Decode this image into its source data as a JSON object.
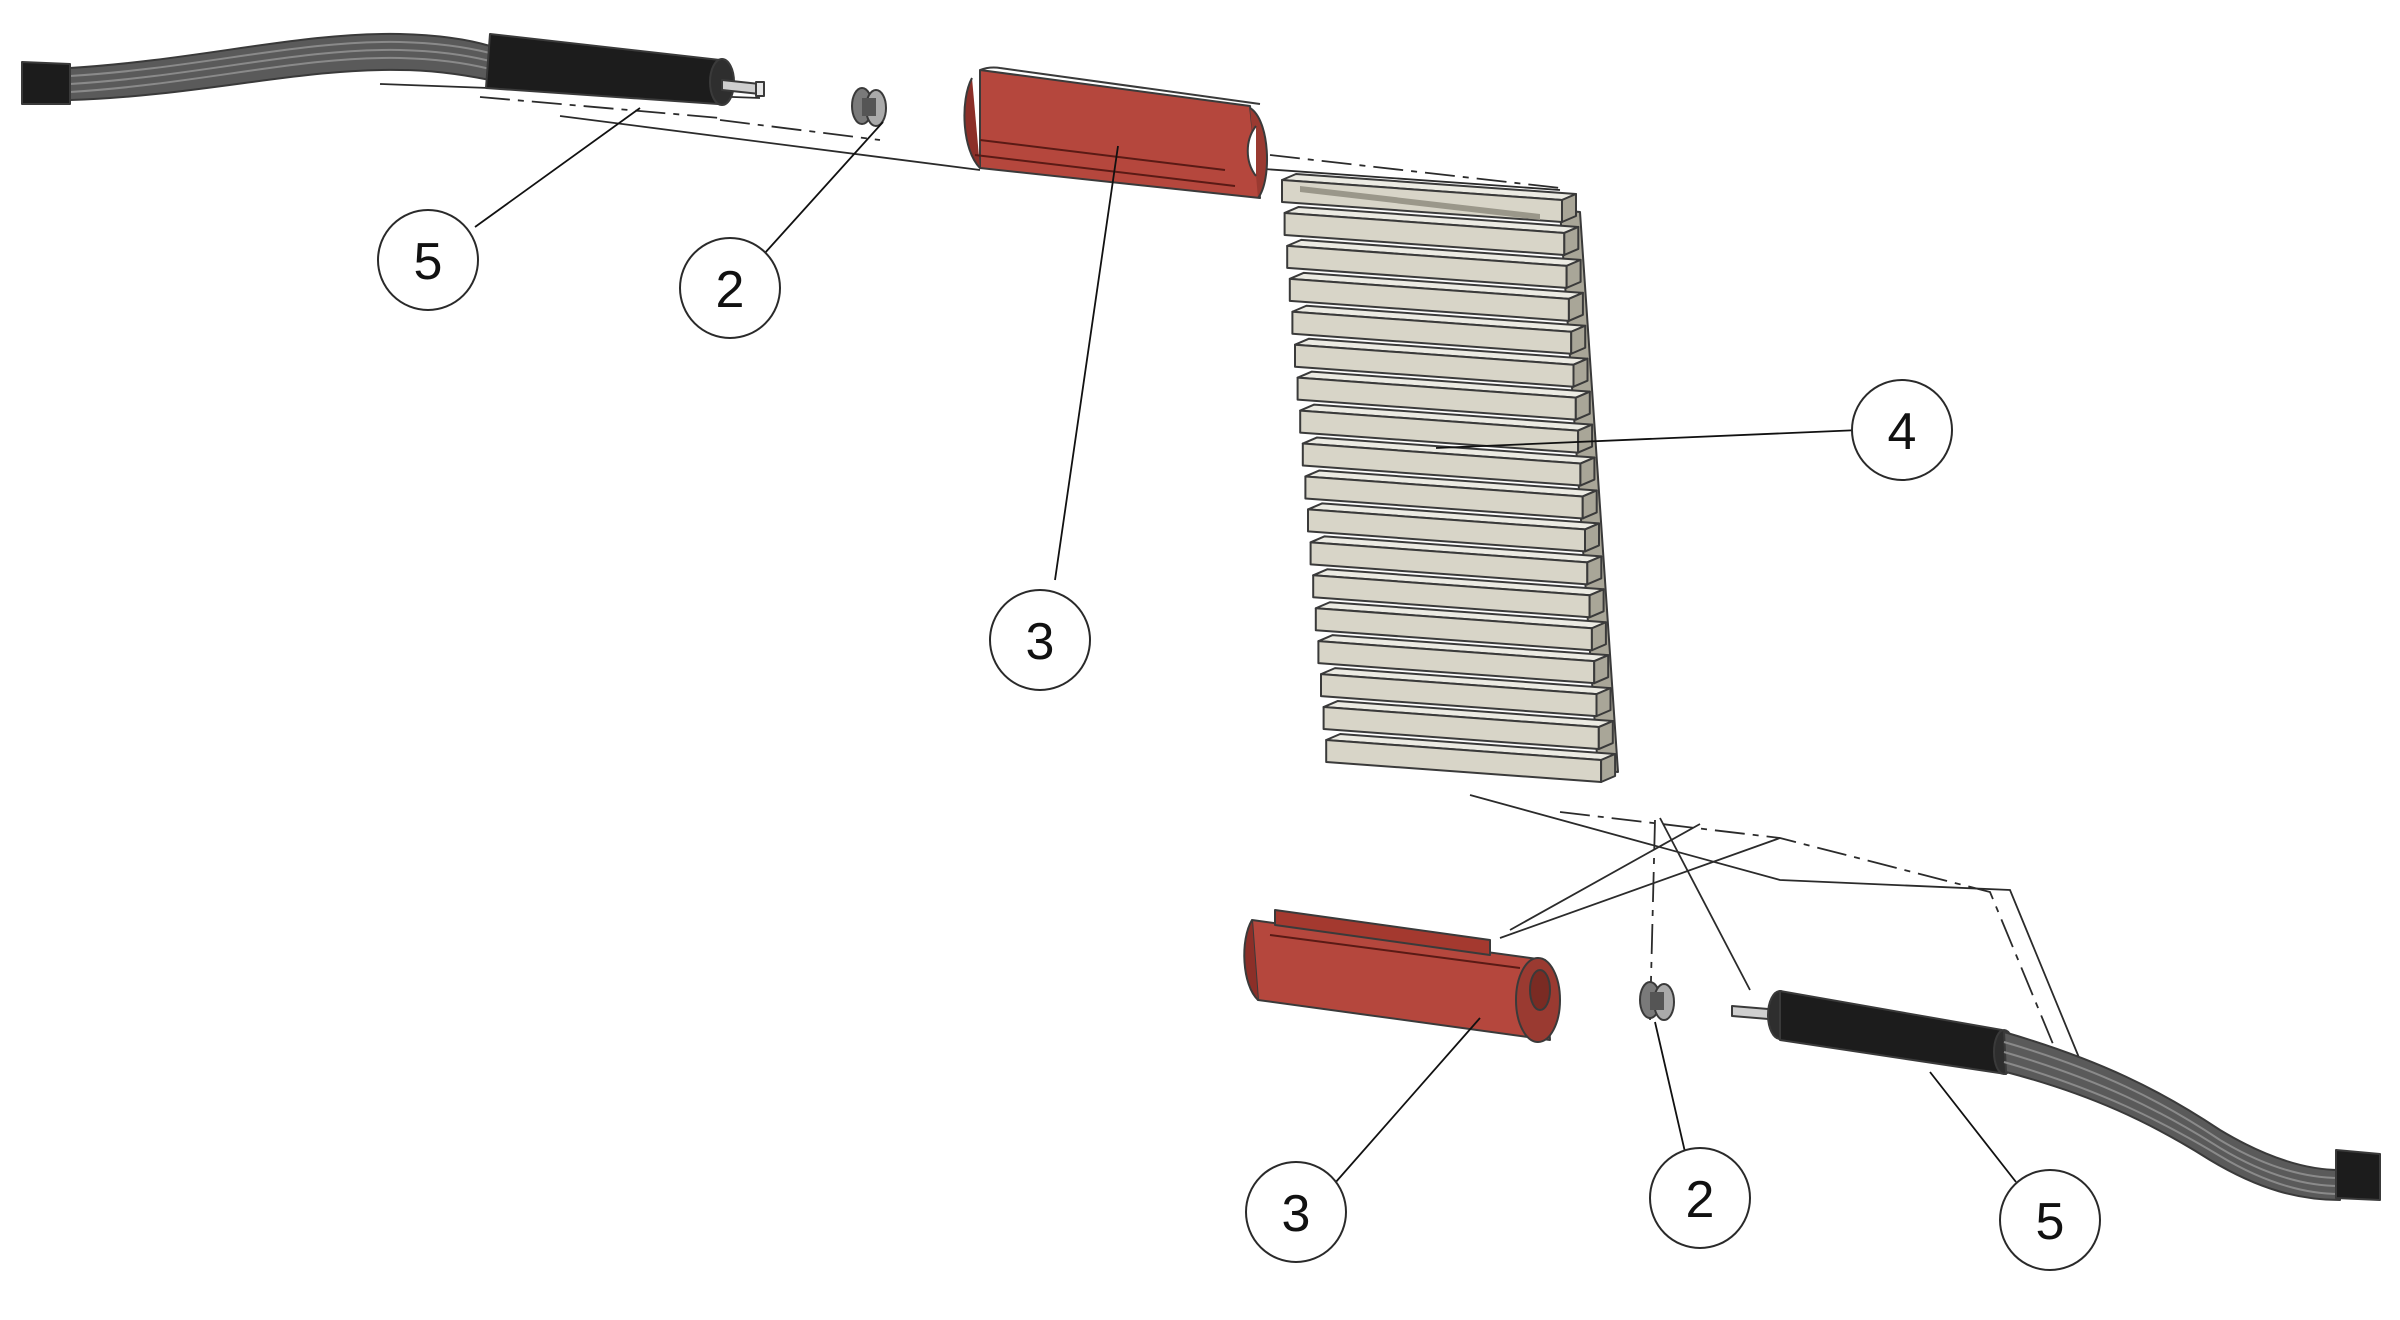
{
  "colors": {
    "background": "#ffffff",
    "red_part": "#b5473d",
    "red_part_dark": "#8c2f28",
    "fin_light": "#d8d5c8",
    "fin_dark": "#a9a698",
    "black_part": "#1c1c1c",
    "cable": "#5a5a5a"
  },
  "icons": {
    "black_sleeve": "cylindrical-sleeve-icon",
    "flat_cable": "ribbon-cable-icon",
    "washer": "washer-icon",
    "red_block": "slotted-red-block-icon",
    "fin_stack": "heat-sink-fins-icon"
  },
  "callouts": {
    "top_left_5": "5",
    "top_2": "2",
    "top_3": "3",
    "fins_4": "4",
    "bottom_3": "3",
    "bottom_2": "2",
    "bottom_right_5": "5"
  },
  "fin_count": 18
}
